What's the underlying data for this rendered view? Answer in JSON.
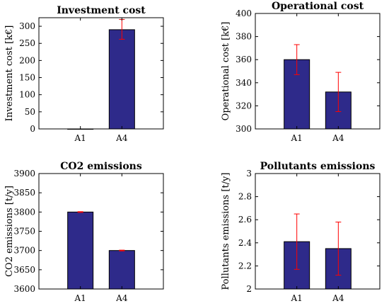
{
  "colors": {
    "bar": "#2e2a8a",
    "bar_edge": "#000000",
    "errorbar": "#ff0000",
    "axis": "#000000"
  },
  "chart_data": [
    {
      "type": "bar",
      "title": "Investment cost",
      "ylabel": "Investment cost [k€]",
      "xlabel": "",
      "categories": [
        "A1",
        "A4"
      ],
      "values": [
        0,
        290
      ],
      "errors": [
        [
          0,
          0
        ],
        [
          28,
          30
        ]
      ],
      "ylim": [
        0,
        325
      ],
      "yticks": [
        0,
        50,
        100,
        150,
        200,
        250,
        300
      ],
      "grid": false
    },
    {
      "type": "bar",
      "title": "Operational cost",
      "ylabel": "Operational cost [k€]",
      "xlabel": "",
      "categories": [
        "A1",
        "A4"
      ],
      "values": [
        360,
        332
      ],
      "errors": [
        [
          13,
          13
        ],
        [
          17,
          17
        ]
      ],
      "ylim": [
        300,
        400
      ],
      "yticks": [
        300,
        320,
        340,
        360,
        380,
        400
      ],
      "grid": false
    },
    {
      "type": "bar",
      "title": "CO2 emissions",
      "ylabel": "CO2 emissions [t/y]",
      "xlabel": "",
      "categories": [
        "A1",
        "A4"
      ],
      "values": [
        3800,
        3700
      ],
      "errors": [
        [
          1,
          1
        ],
        [
          1,
          1
        ]
      ],
      "ylim": [
        3600,
        3900
      ],
      "yticks": [
        3600,
        3650,
        3700,
        3750,
        3800,
        3850,
        3900
      ],
      "grid": false
    },
    {
      "type": "bar",
      "title": "Pollutants emissions",
      "ylabel": "Pollutants emissions [t/y]",
      "xlabel": "",
      "categories": [
        "A1",
        "A4"
      ],
      "values": [
        2.41,
        2.35
      ],
      "errors": [
        [
          0.24,
          0.24
        ],
        [
          0.23,
          0.23
        ]
      ],
      "ylim": [
        2,
        3
      ],
      "yticks": [
        2,
        2.2,
        2.4,
        2.6,
        2.8,
        3
      ],
      "grid": false
    }
  ]
}
